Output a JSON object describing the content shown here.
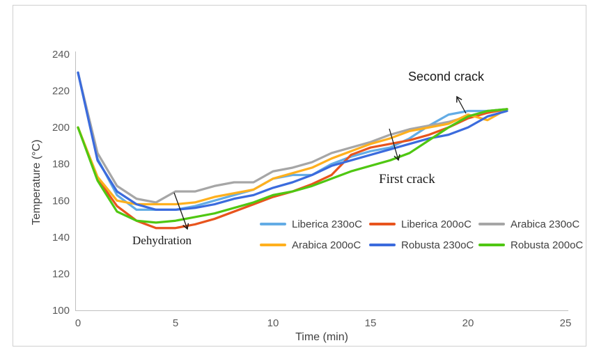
{
  "figure": {
    "border_color": "#cfcfcf",
    "background": "#ffffff"
  },
  "chart_data": {
    "type": "line",
    "title": "",
    "xlabel": "Time (min)",
    "ylabel": "Temperature (°C)",
    "xlim": [
      0,
      25
    ],
    "ylim": [
      100,
      240
    ],
    "x_ticks": [
      0,
      5,
      10,
      15,
      20,
      25
    ],
    "y_ticks": [
      100,
      120,
      140,
      160,
      180,
      200,
      220,
      240
    ],
    "grid": false,
    "legend_position": "inside plot, lower right, two rows of three",
    "x": [
      0,
      1,
      2,
      3,
      4,
      5,
      6,
      7,
      8,
      9,
      10,
      11,
      12,
      13,
      14,
      15,
      16,
      17,
      18,
      19,
      20,
      21,
      22
    ],
    "series": [
      {
        "name": "Liberica 230oC",
        "color": "#63ACE5",
        "values": [
          230,
          183,
          163,
          155,
          155,
          155,
          157,
          160,
          163,
          166,
          172,
          174,
          174,
          180,
          184,
          187,
          189,
          194,
          201,
          207,
          209,
          209,
          210
        ]
      },
      {
        "name": "Liberica 200oC",
        "color": "#E8541D",
        "values": [
          200,
          172,
          157,
          149,
          145,
          145,
          147,
          150,
          154,
          158,
          162,
          165,
          169,
          174,
          185,
          189,
          191,
          193,
          196,
          200,
          205,
          208,
          210
        ]
      },
      {
        "name": "Arabica 230oC",
        "color": "#A6A6A6",
        "values": [
          230,
          186,
          168,
          161,
          159,
          165,
          165,
          168,
          170,
          170,
          176,
          178,
          181,
          186,
          189,
          192,
          196,
          199,
          201,
          203,
          206,
          209,
          210
        ]
      },
      {
        "name": "Arabica 200oC",
        "color": "#FFB01E",
        "values": [
          200,
          173,
          160,
          158,
          158,
          158,
          159,
          162,
          164,
          166,
          172,
          175,
          178,
          183,
          187,
          191,
          194,
          198,
          200,
          202,
          207,
          204,
          210
        ]
      },
      {
        "name": "Robusta 230oC",
        "color": "#3B6BDD",
        "values": [
          230,
          182,
          165,
          158,
          155,
          155,
          156,
          158,
          161,
          163,
          167,
          170,
          174,
          179,
          182,
          185,
          188,
          191,
          194,
          196,
          200,
          206,
          209
        ]
      },
      {
        "name": "Robusta 200oC",
        "color": "#4FC712",
        "values": [
          200,
          171,
          154,
          149,
          148,
          149,
          151,
          153,
          156,
          159,
          163,
          165,
          168,
          172,
          176,
          179,
          182,
          186,
          193,
          200,
          206,
          209,
          210
        ]
      }
    ]
  },
  "axis_style": {
    "tick_color": "#595959",
    "title_color": "#404040",
    "axis_line_color": "#BFBFBF"
  },
  "annotations": {
    "second_crack": "Second crack",
    "first_crack": "First crack",
    "dehydration": "Dehydration"
  }
}
